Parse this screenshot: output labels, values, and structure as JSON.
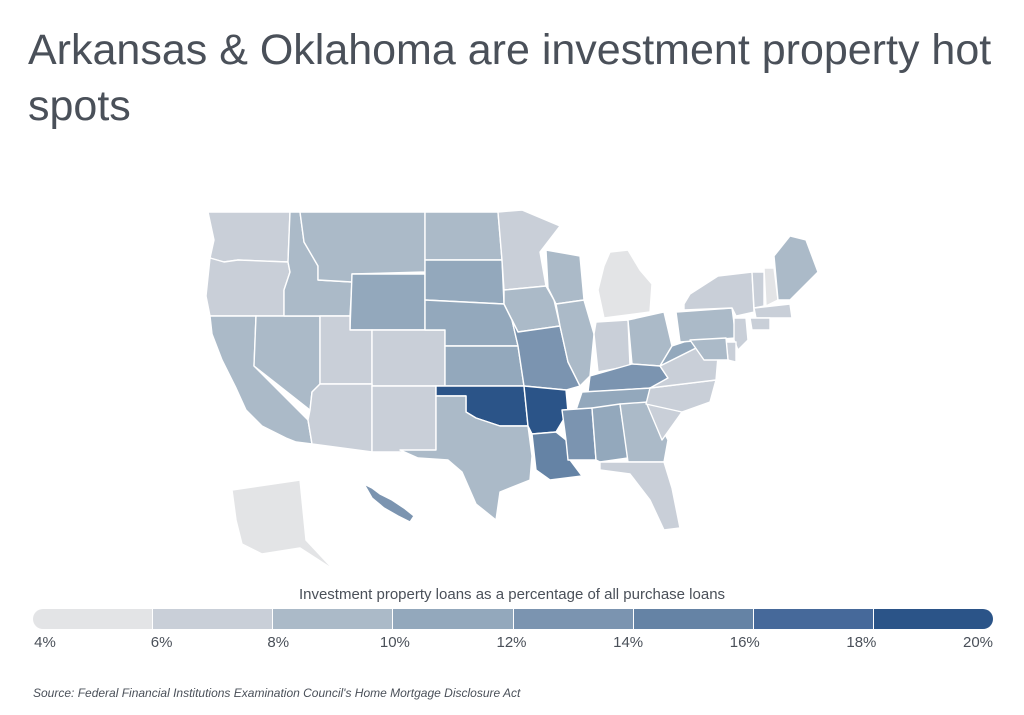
{
  "title": "Arkansas & Oklahoma are investment property hot spots",
  "legend": {
    "title": "Investment property loans as a percentage of all purchase loans",
    "ticks": [
      "4%",
      "6%",
      "8%",
      "10%",
      "12%",
      "14%",
      "16%",
      "18%",
      "20%"
    ],
    "colors": [
      "#e3e4e6",
      "#c9cfd8",
      "#abbac8",
      "#93a8bc",
      "#7b94b0",
      "#6583a5",
      "#46699a",
      "#2b5488"
    ]
  },
  "source": "Source:  Federal Financial Institutions Examination Council's Home Mortgage Disclosure Act",
  "map_data": {
    "scale": "4% to 20%",
    "states": {
      "WA": "6-8%",
      "OR": "6-8%",
      "CA": "8-10%",
      "NV": "8-10%",
      "ID": "8-10%",
      "MT": "8-10%",
      "WY": "10-12%",
      "UT": "6-8%",
      "CO": "6-8%",
      "AZ": "6-8%",
      "NM": "6-8%",
      "ND": "8-10%",
      "SD": "10-12%",
      "NE": "10-12%",
      "KS": "10-12%",
      "OK": "18-20%",
      "TX": "8-10%",
      "MN": "6-8%",
      "IA": "8-10%",
      "MO": "12-14%",
      "AR": "18-20%",
      "LA": "14-16%",
      "WI": "8-10%",
      "IL": "8-10%",
      "MI": "4-6%",
      "IN": "6-8%",
      "OH": "8-10%",
      "KY": "12-14%",
      "TN": "10-12%",
      "MS": "12-14%",
      "AL": "10-12%",
      "GA": "8-10%",
      "FL": "6-8%",
      "SC": "6-8%",
      "NC": "6-8%",
      "VA": "6-8%",
      "WV": "10-12%",
      "PA": "8-10%",
      "NY": "6-8%",
      "VT": "6-8%",
      "NH": "4-6%",
      "ME": "8-10%",
      "MA": "6-8%",
      "CT": "6-8%",
      "NJ": "6-8%",
      "DE": "6-8%",
      "MD": "8-10%",
      "AK": "4-6%",
      "HI": "12-14%"
    }
  }
}
